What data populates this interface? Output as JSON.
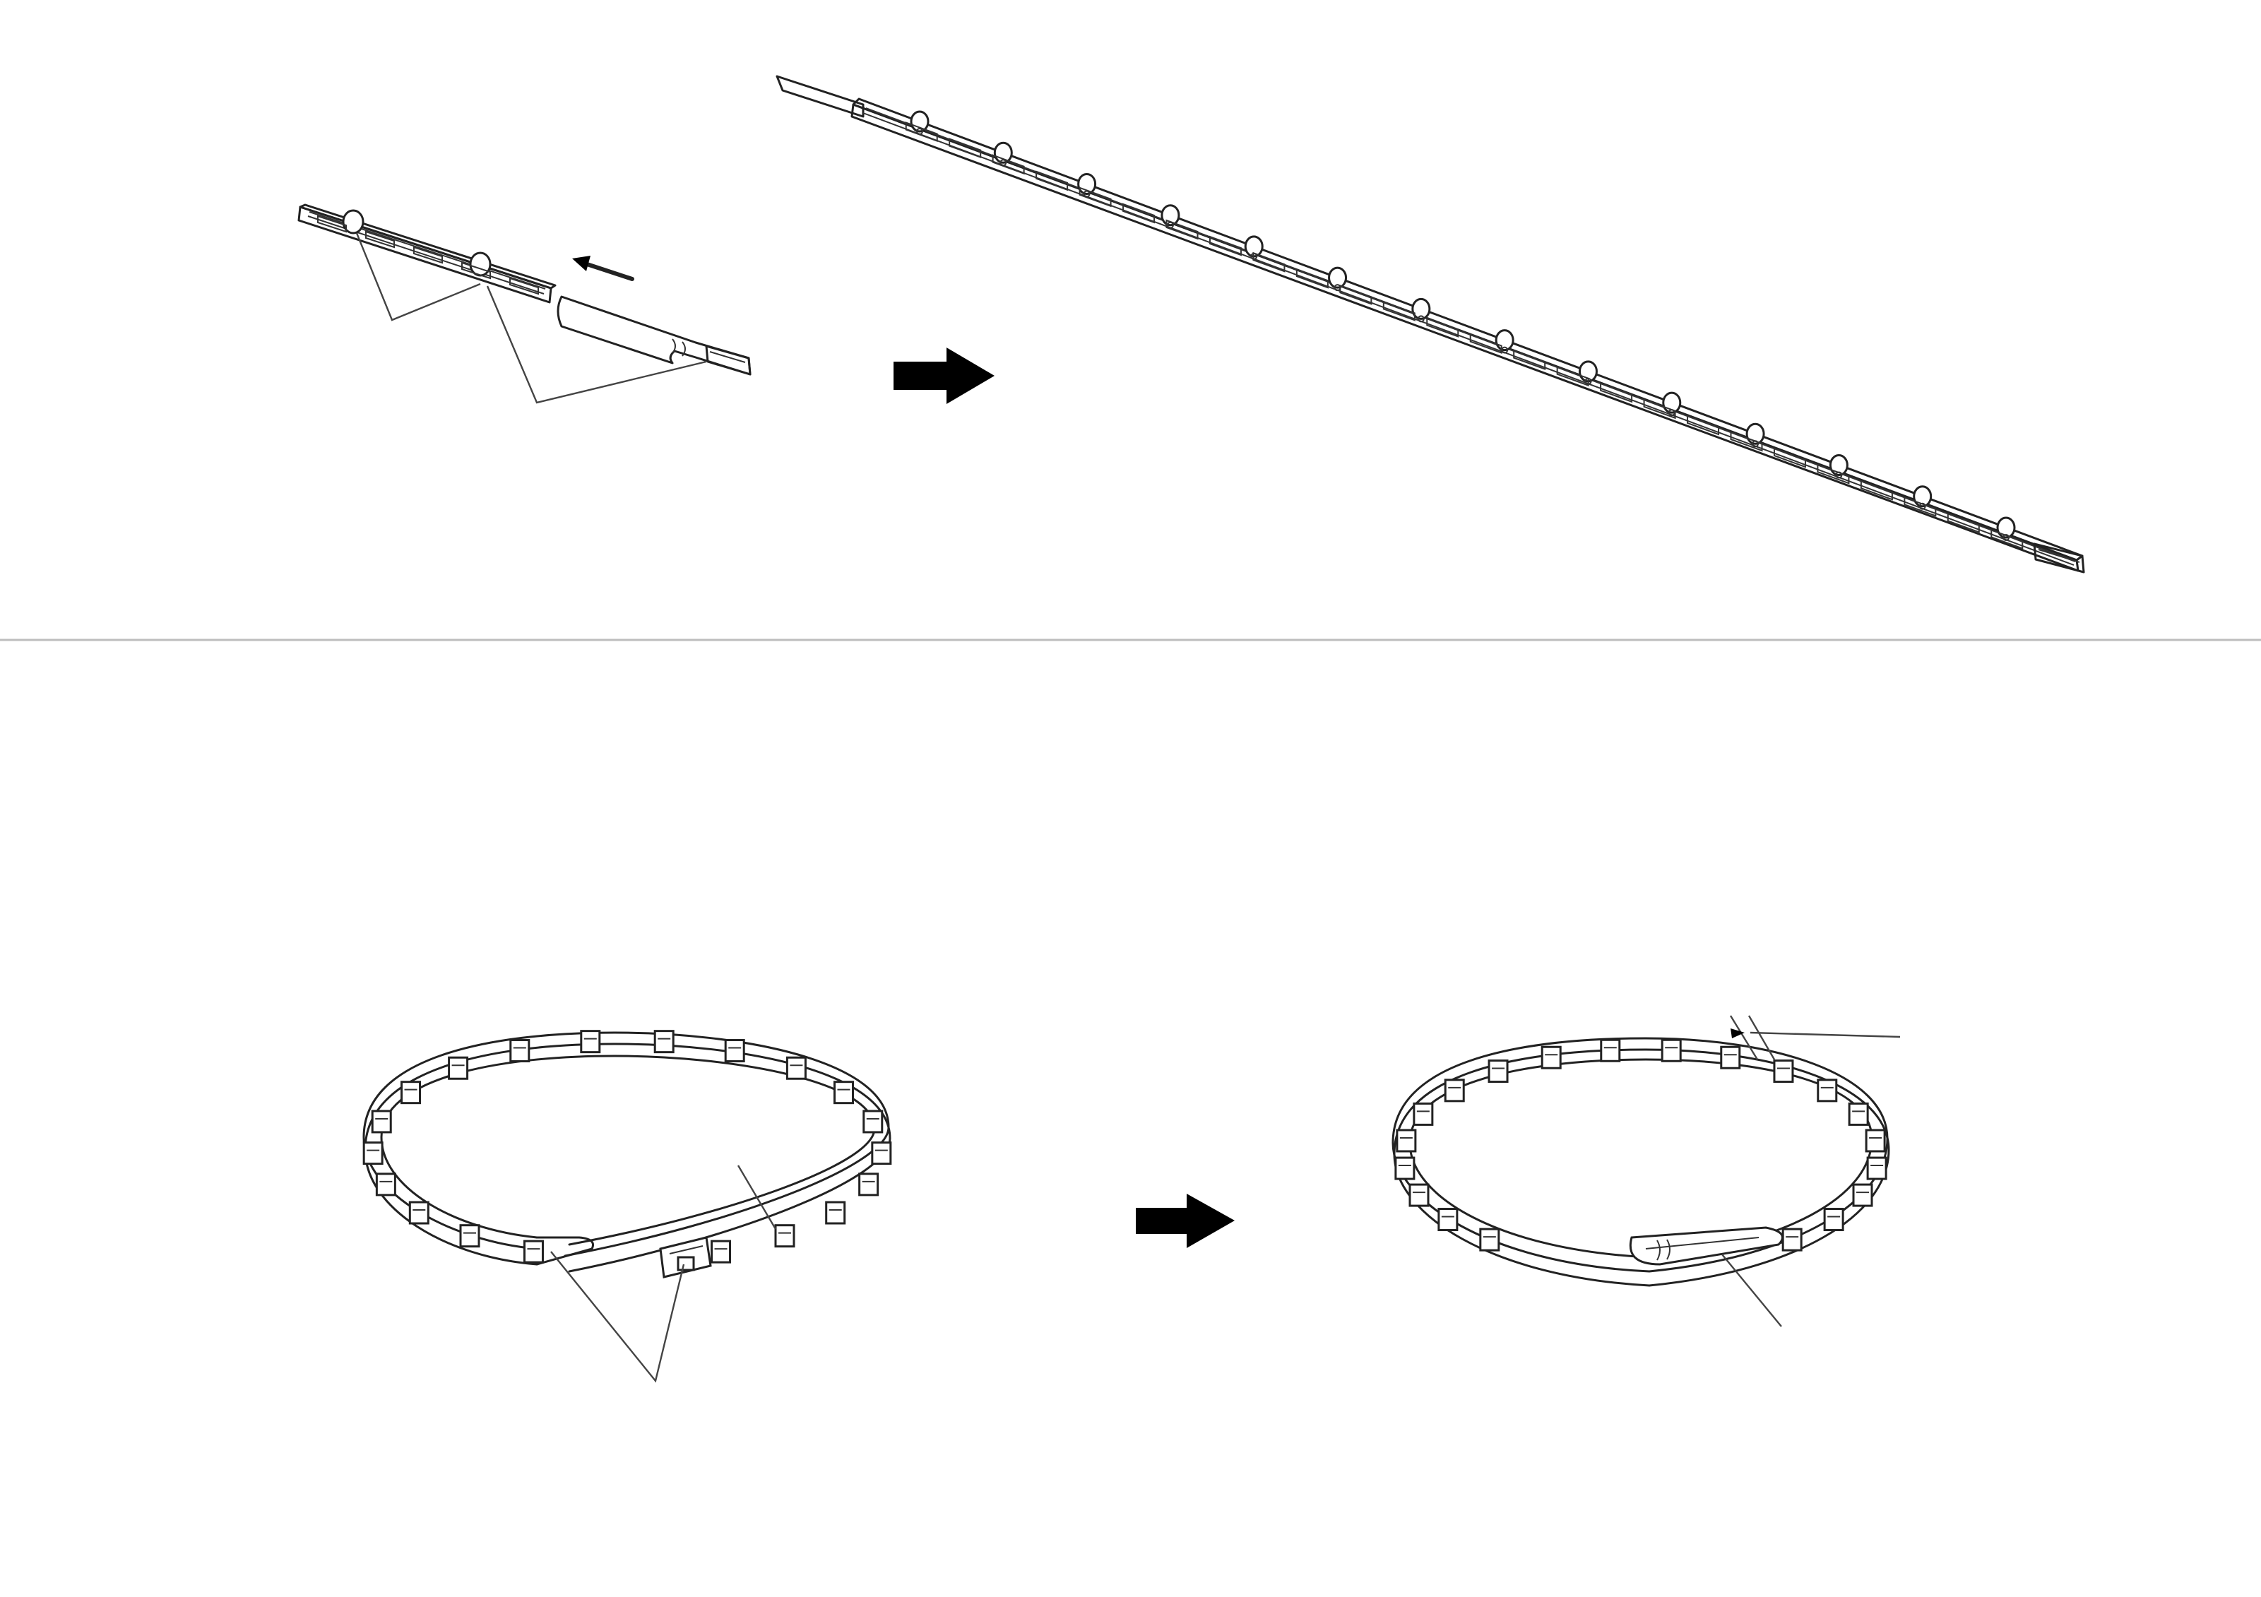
{
  "colors": {
    "background": "#ffffff",
    "line": "#222222",
    "divider": "#bdbdbd",
    "arrow": "#000000"
  },
  "panels": [
    {
      "id": "step-1",
      "items": [
        "short-strip-segment",
        "tab-end-piece",
        "insertion-arrow",
        "leader-lines",
        "assembled-long-strip"
      ]
    },
    {
      "id": "step-2",
      "items": [
        "open-ring",
        "process-arrow",
        "closed-ring",
        "gap-dimension",
        "leader-lines"
      ]
    }
  ]
}
